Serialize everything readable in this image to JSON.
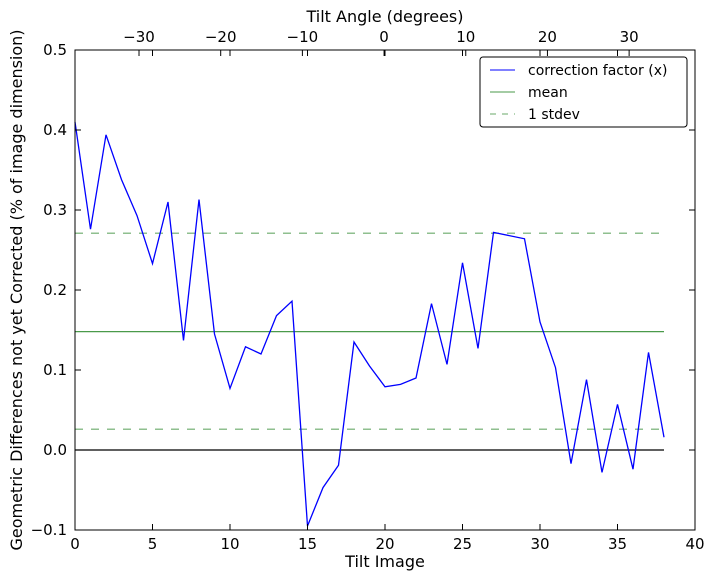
{
  "chart_data": {
    "type": "line",
    "title": "",
    "xlabel": "Tilt Image",
    "ylabel": "Geometric Differences not yet Corrected (% of image dimension)",
    "top_xlabel": "Tilt Angle (degrees)",
    "xlim": [
      0,
      40
    ],
    "ylim": [
      -0.1,
      0.5
    ],
    "xticks": [
      0,
      5,
      10,
      15,
      20,
      25,
      30,
      35,
      40
    ],
    "yticks": [
      -0.1,
      0.0,
      0.1,
      0.2,
      0.3,
      0.4,
      0.5
    ],
    "ytick_labels": [
      "−0.1",
      "0.0",
      "0.1",
      "0.2",
      "0.3",
      "0.4",
      "0.5"
    ],
    "top_xticks": [
      -30,
      -20,
      -10,
      0,
      10,
      20,
      30
    ],
    "top_xtick_labels": [
      "−30",
      "−20",
      "−10",
      "0",
      "10",
      "20",
      "30"
    ],
    "top_axis_map": {
      "zero_angle_at_index": 19.94,
      "index_per_degree": 0.527
    },
    "series": [
      {
        "name": "correction factor (x)",
        "color": "#0000ff",
        "style": "solid",
        "x": [
          0,
          1,
          2,
          3,
          4,
          5,
          6,
          7,
          8,
          9,
          10,
          11,
          12,
          13,
          14,
          15,
          16,
          17,
          18,
          19,
          20,
          21,
          22,
          23,
          24,
          25,
          26,
          27,
          29,
          30,
          31,
          32,
          33,
          34,
          35,
          36,
          37,
          38
        ],
        "y": [
          0.41,
          0.276,
          0.394,
          0.338,
          0.293,
          0.233,
          0.31,
          0.137,
          0.313,
          0.145,
          0.077,
          0.129,
          0.12,
          0.168,
          0.186,
          -0.095,
          -0.047,
          -0.019,
          0.135,
          0.105,
          0.079,
          0.082,
          0.09,
          0.183,
          0.107,
          0.234,
          0.127,
          0.272,
          0.264,
          0.16,
          0.103,
          -0.017,
          0.088,
          -0.028,
          0.057,
          -0.024,
          0.122,
          0.016
        ]
      },
      {
        "name": "mean",
        "color": "#4a9a4a",
        "style": "solid",
        "value": 0.148
      },
      {
        "name": "1 stdev",
        "color": "#6aaa6a",
        "style": "dashed",
        "values": [
          0.271,
          0.026
        ]
      }
    ],
    "zero_line": 0.0,
    "legend": "top-right",
    "grid": false
  }
}
